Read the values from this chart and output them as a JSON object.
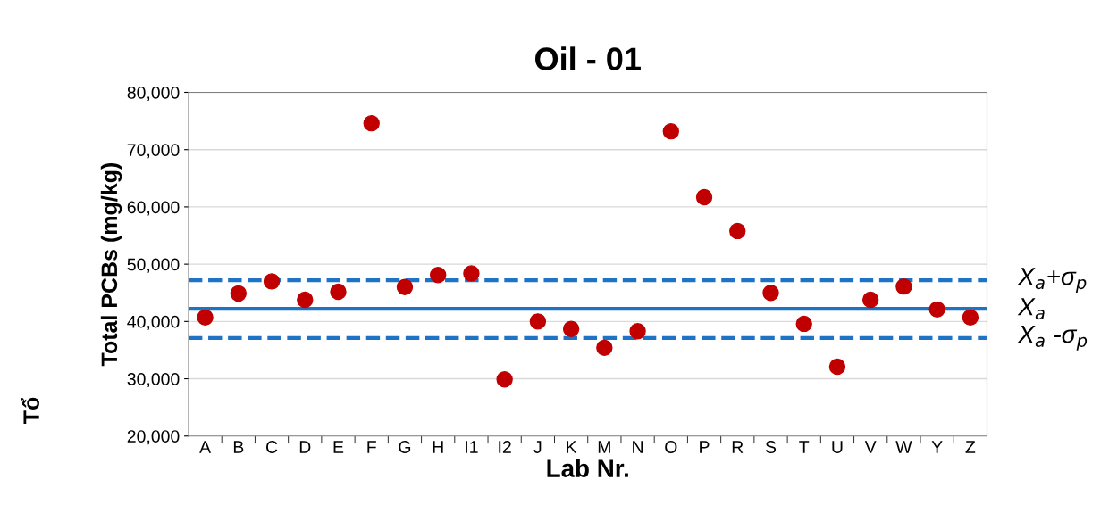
{
  "chart_data": {
    "type": "scatter",
    "title": "Oil - 01",
    "xlabel": "Lab Nr.",
    "ylabel": "Total PCBs (mg/kg)",
    "annotations": [
      "Tổ"
    ],
    "categories": [
      "A",
      "B",
      "C",
      "D",
      "E",
      "F",
      "G",
      "H",
      "I1",
      "I2",
      "J",
      "K",
      "M",
      "N",
      "O",
      "P",
      "R",
      "S",
      "T",
      "U",
      "V",
      "W",
      "Y",
      "Z"
    ],
    "series": [
      {
        "color": "#c00000",
        "values": [
          40700,
          44900,
          47000,
          43800,
          45200,
          74600,
          46000,
          48100,
          48400,
          29900,
          40000,
          38700,
          35400,
          38300,
          73200,
          61700,
          55800,
          45000,
          39600,
          32100,
          43800,
          46100,
          42100,
          40700
        ]
      }
    ],
    "marker": "circle",
    "grid": "y",
    "ylim": [
      20000,
      80000
    ],
    "yticks": [
      {
        "value": 20000,
        "label": "20,000"
      },
      {
        "value": 30000,
        "label": "30,000"
      },
      {
        "value": 40000,
        "label": "40,000"
      },
      {
        "value": 50000,
        "label": "50,000"
      },
      {
        "value": 60000,
        "label": "60,000"
      },
      {
        "value": 70000,
        "label": "70,000"
      },
      {
        "value": 80000,
        "label": "80,000"
      }
    ],
    "ref_lines": [
      {
        "axis": "y",
        "value": 47200,
        "label": "X$_{a}$+σ$_{p}$",
        "color": "#1f73c4",
        "line_style": "dashed"
      },
      {
        "axis": "y",
        "value": 42200,
        "label": "X$_{a}$",
        "color": "#1f73c4",
        "line_style": "solid"
      },
      {
        "axis": "y",
        "value": 37100,
        "label": "X$_{a}$ -σ$_{p}$",
        "color": "#1f73c4",
        "line_style": "dashed"
      }
    ]
  }
}
